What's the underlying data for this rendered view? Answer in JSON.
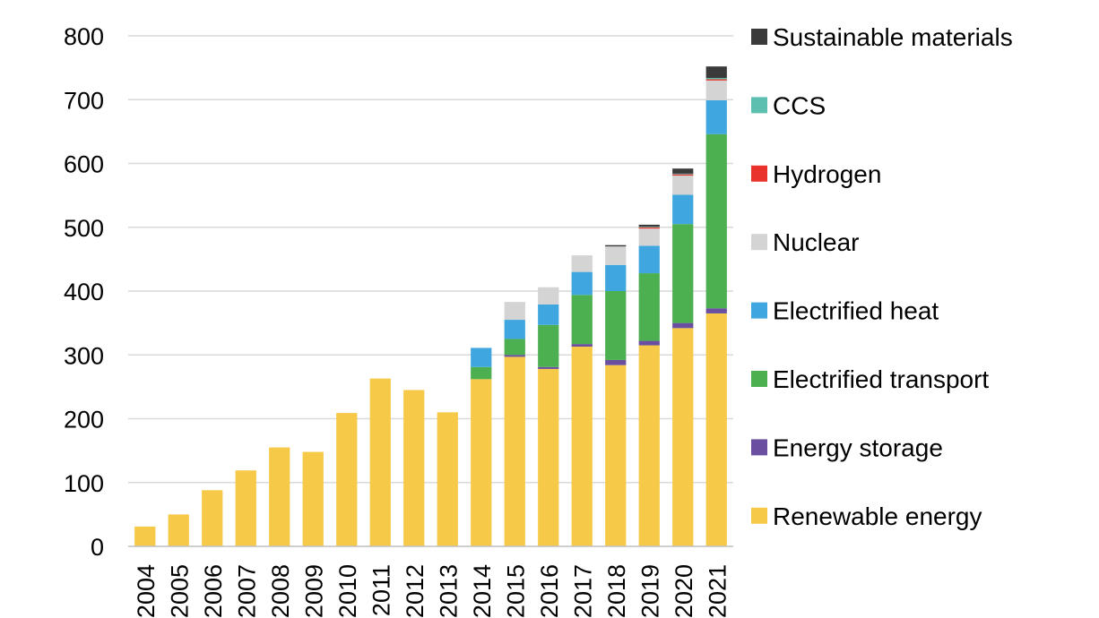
{
  "chart_data": {
    "type": "bar",
    "stacked": true,
    "title": "",
    "xlabel": "",
    "ylabel": "",
    "ylim": [
      0,
      800
    ],
    "yticks": [
      0,
      100,
      200,
      300,
      400,
      500,
      600,
      700,
      800
    ],
    "grid": true,
    "legend_position": "right",
    "categories": [
      "2004",
      "2005",
      "2006",
      "2007",
      "2008",
      "2009",
      "2010",
      "2011",
      "2012",
      "2013",
      "2014",
      "2015",
      "2016",
      "2017",
      "2018",
      "2019",
      "2020",
      "2021"
    ],
    "series": [
      {
        "name": "Renewable energy",
        "color": "#F7C948",
        "values": [
          31,
          50,
          88,
          119,
          155,
          148,
          209,
          263,
          245,
          210,
          262,
          297,
          278,
          313,
          284,
          315,
          342,
          365
        ]
      },
      {
        "name": "Energy storage",
        "color": "#6A4FA0",
        "values": [
          0,
          0,
          0,
          0,
          0,
          0,
          0,
          0,
          0,
          0,
          0,
          3,
          3,
          4,
          8,
          7,
          8,
          8
        ]
      },
      {
        "name": "Electrified transport",
        "color": "#4CAF50",
        "values": [
          0,
          0,
          0,
          0,
          0,
          0,
          0,
          0,
          0,
          0,
          19,
          25,
          66,
          77,
          108,
          106,
          155,
          273
        ]
      },
      {
        "name": "Electrified heat",
        "color": "#3FA6E0",
        "values": [
          0,
          0,
          0,
          0,
          0,
          0,
          0,
          0,
          0,
          0,
          30,
          30,
          32,
          36,
          41,
          43,
          46,
          53
        ]
      },
      {
        "name": "Nuclear",
        "color": "#D4D4D4",
        "values": [
          0,
          0,
          0,
          0,
          0,
          0,
          0,
          0,
          0,
          0,
          0,
          28,
          27,
          26,
          29,
          27,
          30,
          31
        ]
      },
      {
        "name": "Hydrogen",
        "color": "#E8322B",
        "values": [
          0,
          0,
          0,
          0,
          0,
          0,
          0,
          0,
          0,
          0,
          0,
          0,
          0,
          0,
          0,
          2,
          2,
          2
        ]
      },
      {
        "name": "CCS",
        "color": "#5DBFAF",
        "values": [
          0,
          0,
          0,
          0,
          0,
          0,
          0,
          0,
          0,
          0,
          0,
          0,
          0,
          0,
          0,
          1,
          1,
          2
        ]
      },
      {
        "name": "Sustainable materials",
        "color": "#3A3A3A",
        "values": [
          0,
          0,
          0,
          0,
          0,
          0,
          0,
          0,
          0,
          0,
          0,
          0,
          0,
          0,
          2,
          3,
          8,
          18
        ]
      }
    ],
    "legend": [
      "Sustainable materials",
      "CCS",
      "Hydrogen",
      "Nuclear",
      "Electrified heat",
      "Electrified transport",
      "Energy storage",
      "Renewable energy"
    ]
  }
}
